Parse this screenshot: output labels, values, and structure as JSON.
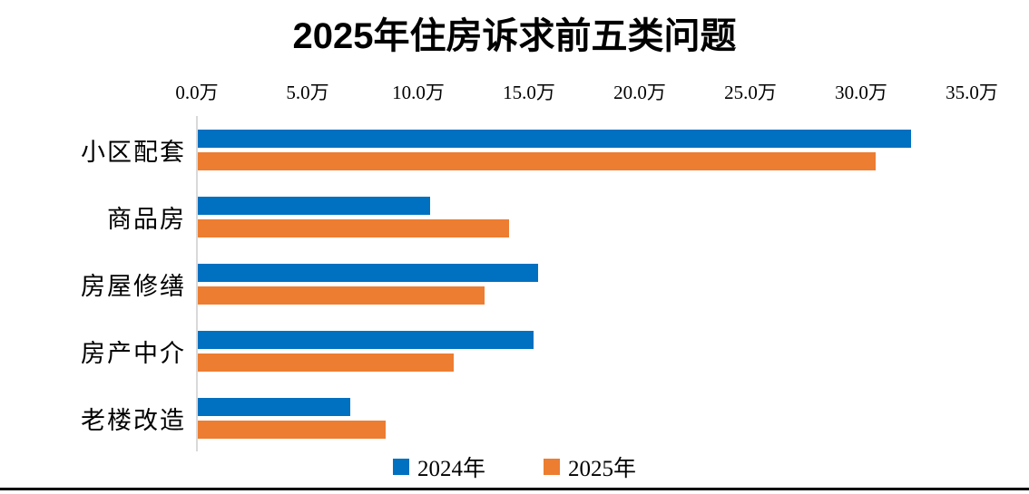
{
  "chart_data": {
    "type": "bar",
    "orientation": "horizontal",
    "title": "2025年住房诉求前五类问题",
    "categories": [
      "小区配套",
      "商品房",
      "房屋修缮",
      "房产中介",
      "老楼改造"
    ],
    "series": [
      {
        "name": "2024年",
        "color": "#0070C0",
        "values": [
          32.3,
          10.5,
          15.4,
          15.2,
          6.9
        ]
      },
      {
        "name": "2025年",
        "color": "#ED7D31",
        "values": [
          30.7,
          14.1,
          13.0,
          11.6,
          8.5
        ]
      }
    ],
    "x_ticks": [
      "0.0万",
      "5.0万",
      "10.0万",
      "15.0万",
      "20.0万",
      "25.0万",
      "30.0万",
      "35.0万"
    ],
    "xlim": [
      0,
      35
    ],
    "unit": "万",
    "legend_position": "bottom",
    "grid": false,
    "axis_line_color": "#D9D9D9",
    "background_color": "#FFFFFF",
    "bottom_border_color": "#000000"
  }
}
